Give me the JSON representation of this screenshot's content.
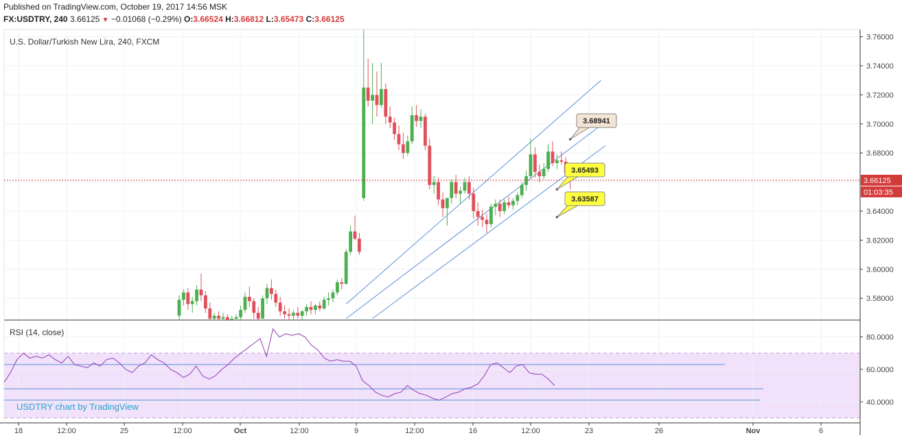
{
  "header": {
    "published": "Published on TradingView.com, October 19, 2017 14:56 MSK",
    "symbol": "FX:USDTRY, 240",
    "last": "3.66125",
    "change": "−0.01068 (−0.29%)",
    "open_label": "O:",
    "open": "3.66524",
    "high_label": "H:",
    "high": "3.66812",
    "low_label": "L:",
    "low": "3.65473",
    "close_label": "C:",
    "close": "3.66125"
  },
  "chart_data": {
    "type": "candlestick",
    "title": "U.S. Dollar/Turkish New Lira, 240, FXCM",
    "ylim": [
      3.565,
      3.765
    ],
    "y_ticks": [
      "3.76000",
      "3.74000",
      "3.72000",
      "3.70000",
      "3.68000",
      "3.66000",
      "3.64000",
      "3.62000",
      "3.60000",
      "3.58000"
    ],
    "x_ticks": [
      "18",
      "12:00",
      "25",
      "12:00",
      "Oct",
      "12:00",
      "9",
      "12:00",
      "16",
      "12:00",
      "23",
      "26",
      "Nov",
      "6"
    ],
    "current_price": "3.66125",
    "countdown": "01:03:35",
    "callouts": [
      {
        "text": "3.68941",
        "price": 3.68941,
        "style": "neutral"
      },
      {
        "text": "3.65493",
        "price": 3.65493,
        "style": "yellow"
      },
      {
        "text": "3.63587",
        "price": 3.63587,
        "style": "yellow"
      }
    ],
    "candles": [
      {
        "o": 3.568,
        "h": 3.582,
        "l": 3.565,
        "c": 3.579
      },
      {
        "o": 3.579,
        "h": 3.586,
        "l": 3.575,
        "c": 3.584
      },
      {
        "o": 3.584,
        "h": 3.587,
        "l": 3.572,
        "c": 3.576
      },
      {
        "o": 3.576,
        "h": 3.581,
        "l": 3.57,
        "c": 3.578
      },
      {
        "o": 3.578,
        "h": 3.589,
        "l": 3.575,
        "c": 3.586
      },
      {
        "o": 3.586,
        "h": 3.597,
        "l": 3.578,
        "c": 3.582
      },
      {
        "o": 3.582,
        "h": 3.585,
        "l": 3.57,
        "c": 3.573
      },
      {
        "o": 3.573,
        "h": 3.577,
        "l": 3.565,
        "c": 3.566
      },
      {
        "o": 3.566,
        "h": 3.57,
        "l": 3.563,
        "c": 3.568
      },
      {
        "o": 3.568,
        "h": 3.571,
        "l": 3.564,
        "c": 3.566
      },
      {
        "o": 3.566,
        "h": 3.57,
        "l": 3.562,
        "c": 3.567
      },
      {
        "o": 3.567,
        "h": 3.569,
        "l": 3.563,
        "c": 3.565
      },
      {
        "o": 3.565,
        "h": 3.568,
        "l": 3.561,
        "c": 3.566
      },
      {
        "o": 3.566,
        "h": 3.569,
        "l": 3.562,
        "c": 3.567
      },
      {
        "o": 3.567,
        "h": 3.575,
        "l": 3.565,
        "c": 3.572
      },
      {
        "o": 3.572,
        "h": 3.584,
        "l": 3.57,
        "c": 3.581
      },
      {
        "o": 3.581,
        "h": 3.588,
        "l": 3.574,
        "c": 3.578
      },
      {
        "o": 3.578,
        "h": 3.58,
        "l": 3.566,
        "c": 3.57
      },
      {
        "o": 3.57,
        "h": 3.574,
        "l": 3.564,
        "c": 3.566
      },
      {
        "o": 3.566,
        "h": 3.582,
        "l": 3.566,
        "c": 3.58
      },
      {
        "o": 3.58,
        "h": 3.59,
        "l": 3.576,
        "c": 3.587
      },
      {
        "o": 3.587,
        "h": 3.593,
        "l": 3.579,
        "c": 3.583
      },
      {
        "o": 3.583,
        "h": 3.586,
        "l": 3.574,
        "c": 3.577
      },
      {
        "o": 3.577,
        "h": 3.581,
        "l": 3.568,
        "c": 3.571
      },
      {
        "o": 3.571,
        "h": 3.575,
        "l": 3.566,
        "c": 3.569
      },
      {
        "o": 3.569,
        "h": 3.573,
        "l": 3.564,
        "c": 3.568
      },
      {
        "o": 3.568,
        "h": 3.572,
        "l": 3.564,
        "c": 3.57
      },
      {
        "o": 3.57,
        "h": 3.574,
        "l": 3.566,
        "c": 3.568
      },
      {
        "o": 3.568,
        "h": 3.572,
        "l": 3.565,
        "c": 3.571
      },
      {
        "o": 3.571,
        "h": 3.576,
        "l": 3.568,
        "c": 3.574
      },
      {
        "o": 3.574,
        "h": 3.578,
        "l": 3.569,
        "c": 3.572
      },
      {
        "o": 3.572,
        "h": 3.576,
        "l": 3.569,
        "c": 3.575
      },
      {
        "o": 3.575,
        "h": 3.578,
        "l": 3.571,
        "c": 3.573
      },
      {
        "o": 3.573,
        "h": 3.581,
        "l": 3.572,
        "c": 3.579
      },
      {
        "o": 3.579,
        "h": 3.584,
        "l": 3.575,
        "c": 3.58
      },
      {
        "o": 3.58,
        "h": 3.586,
        "l": 3.577,
        "c": 3.584
      },
      {
        "o": 3.584,
        "h": 3.593,
        "l": 3.582,
        "c": 3.591
      },
      {
        "o": 3.591,
        "h": 3.594,
        "l": 3.586,
        "c": 3.59
      },
      {
        "o": 3.59,
        "h": 3.614,
        "l": 3.589,
        "c": 3.612
      },
      {
        "o": 3.612,
        "h": 3.63,
        "l": 3.61,
        "c": 3.626
      },
      {
        "o": 3.626,
        "h": 3.637,
        "l": 3.62,
        "c": 3.621
      },
      {
        "o": 3.621,
        "h": 3.625,
        "l": 3.61,
        "c": 3.612
      },
      {
        "o": 3.649,
        "h": 3.765,
        "l": 3.647,
        "c": 3.725
      },
      {
        "o": 3.725,
        "h": 3.745,
        "l": 3.712,
        "c": 3.716
      },
      {
        "o": 3.716,
        "h": 3.742,
        "l": 3.7,
        "c": 3.72
      },
      {
        "o": 3.72,
        "h": 3.736,
        "l": 3.705,
        "c": 3.713
      },
      {
        "o": 3.713,
        "h": 3.742,
        "l": 3.711,
        "c": 3.724
      },
      {
        "o": 3.724,
        "h": 3.728,
        "l": 3.7,
        "c": 3.705
      },
      {
        "o": 3.705,
        "h": 3.712,
        "l": 3.697,
        "c": 3.701
      },
      {
        "o": 3.701,
        "h": 3.704,
        "l": 3.689,
        "c": 3.693
      },
      {
        "o": 3.693,
        "h": 3.699,
        "l": 3.682,
        "c": 3.686
      },
      {
        "o": 3.686,
        "h": 3.694,
        "l": 3.676,
        "c": 3.68
      },
      {
        "o": 3.68,
        "h": 3.692,
        "l": 3.678,
        "c": 3.688
      },
      {
        "o": 3.688,
        "h": 3.712,
        "l": 3.686,
        "c": 3.706
      },
      {
        "o": 3.706,
        "h": 3.713,
        "l": 3.698,
        "c": 3.702
      },
      {
        "o": 3.702,
        "h": 3.71,
        "l": 3.697,
        "c": 3.705
      },
      {
        "o": 3.705,
        "h": 3.707,
        "l": 3.682,
        "c": 3.685
      },
      {
        "o": 3.685,
        "h": 3.69,
        "l": 3.655,
        "c": 3.658
      },
      {
        "o": 3.658,
        "h": 3.664,
        "l": 3.652,
        "c": 3.66
      },
      {
        "o": 3.66,
        "h": 3.663,
        "l": 3.644,
        "c": 3.648
      },
      {
        "o": 3.648,
        "h": 3.653,
        "l": 3.636,
        "c": 3.642
      },
      {
        "o": 3.642,
        "h": 3.648,
        "l": 3.63,
        "c": 3.649
      },
      {
        "o": 3.649,
        "h": 3.662,
        "l": 3.645,
        "c": 3.66
      },
      {
        "o": 3.66,
        "h": 3.665,
        "l": 3.649,
        "c": 3.652
      },
      {
        "o": 3.652,
        "h": 3.657,
        "l": 3.645,
        "c": 3.654
      },
      {
        "o": 3.654,
        "h": 3.663,
        "l": 3.652,
        "c": 3.66
      },
      {
        "o": 3.66,
        "h": 3.664,
        "l": 3.648,
        "c": 3.652
      },
      {
        "o": 3.652,
        "h": 3.656,
        "l": 3.635,
        "c": 3.64
      },
      {
        "o": 3.64,
        "h": 3.646,
        "l": 3.63,
        "c": 3.636
      },
      {
        "o": 3.636,
        "h": 3.641,
        "l": 3.629,
        "c": 3.634
      },
      {
        "o": 3.634,
        "h": 3.638,
        "l": 3.625,
        "c": 3.631
      },
      {
        "o": 3.631,
        "h": 3.645,
        "l": 3.629,
        "c": 3.643
      },
      {
        "o": 3.643,
        "h": 3.648,
        "l": 3.637,
        "c": 3.645
      },
      {
        "o": 3.645,
        "h": 3.648,
        "l": 3.636,
        "c": 3.64
      },
      {
        "o": 3.64,
        "h": 3.648,
        "l": 3.638,
        "c": 3.646
      },
      {
        "o": 3.646,
        "h": 3.65,
        "l": 3.642,
        "c": 3.644
      },
      {
        "o": 3.644,
        "h": 3.649,
        "l": 3.641,
        "c": 3.647
      },
      {
        "o": 3.647,
        "h": 3.653,
        "l": 3.644,
        "c": 3.651
      },
      {
        "o": 3.651,
        "h": 3.66,
        "l": 3.649,
        "c": 3.658
      },
      {
        "o": 3.658,
        "h": 3.668,
        "l": 3.654,
        "c": 3.664
      },
      {
        "o": 3.664,
        "h": 3.69,
        "l": 3.662,
        "c": 3.679
      },
      {
        "o": 3.679,
        "h": 3.684,
        "l": 3.663,
        "c": 3.667
      },
      {
        "o": 3.667,
        "h": 3.672,
        "l": 3.66,
        "c": 3.664
      },
      {
        "o": 3.664,
        "h": 3.673,
        "l": 3.662,
        "c": 3.669
      },
      {
        "o": 3.669,
        "h": 3.686,
        "l": 3.667,
        "c": 3.681
      },
      {
        "o": 3.681,
        "h": 3.688,
        "l": 3.671,
        "c": 3.673
      },
      {
        "o": 3.673,
        "h": 3.679,
        "l": 3.669,
        "c": 3.675
      },
      {
        "o": 3.675,
        "h": 3.681,
        "l": 3.672,
        "c": 3.674
      },
      {
        "o": 3.674,
        "h": 3.677,
        "l": 3.664,
        "c": 3.666
      },
      {
        "o": 3.666,
        "h": 3.668,
        "l": 3.655,
        "c": 3.661
      }
    ],
    "channel": {
      "upper": [
        [
          38,
          3.576
        ],
        [
          96,
          3.73
        ]
      ],
      "mid": [
        [
          38,
          3.566
        ],
        [
          99,
          3.706
        ]
      ],
      "lower": [
        [
          44,
          3.566
        ],
        [
          97,
          3.685
        ]
      ]
    },
    "rsi": {
      "title": "RSI (14, close)",
      "levels": [
        70,
        30
      ],
      "ticks": [
        "80.0000",
        "60.0000",
        "40.0000"
      ],
      "lines": [
        63,
        48,
        41
      ],
      "values": [
        52,
        58,
        66,
        70,
        67,
        68,
        67,
        69,
        66,
        64,
        68,
        63,
        62,
        61,
        64,
        62,
        66,
        67,
        64,
        60,
        58,
        62,
        64,
        69,
        66,
        64,
        60,
        58,
        55,
        57,
        62,
        56,
        54,
        56,
        60,
        63,
        67,
        70,
        73,
        76,
        79,
        68,
        85,
        80,
        82,
        81,
        82,
        80,
        75,
        72,
        67,
        65,
        66,
        65,
        65,
        62,
        53,
        50,
        46,
        44,
        43,
        45,
        46,
        50,
        47,
        45,
        44,
        42,
        41,
        43,
        45,
        46,
        48,
        49,
        51,
        56,
        63,
        64,
        61,
        58,
        62,
        63,
        58,
        57,
        57,
        54,
        50
      ],
      "ylim": [
        27,
        90
      ]
    },
    "watermark": "USDTRY chart by TradingView"
  },
  "colors": {
    "up": "#4caf50",
    "down": "#e0505b",
    "channel": "#5b8fd8",
    "rsi_line": "#8e3fb0",
    "rsi_band": "#f1e1fb",
    "price_line": "#d33b3b",
    "watermark": "#29a3c9"
  }
}
